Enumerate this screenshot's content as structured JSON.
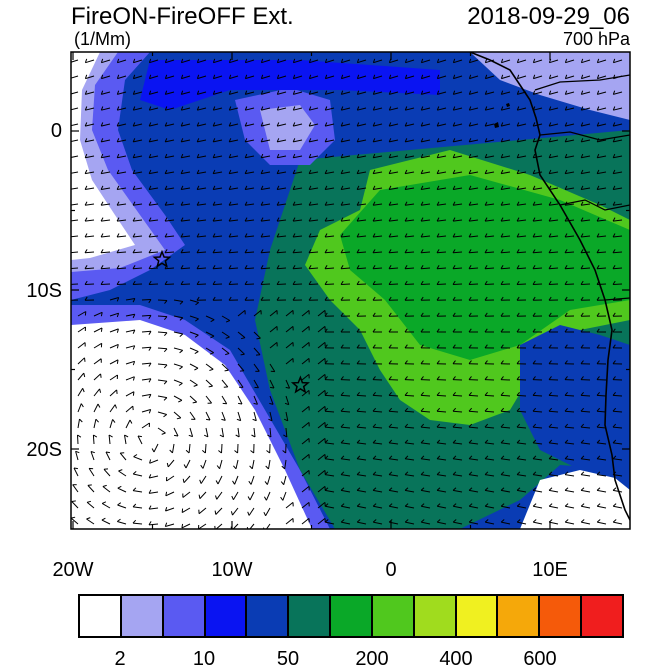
{
  "map": {
    "title": "FireON-FireOFF Ext.",
    "time": "2018-09-29_06",
    "units": "(1/Mm)",
    "level": "700 hPa",
    "lat_labels": [
      "0",
      "10S",
      "20S"
    ],
    "lon_labels": [
      "20W",
      "10W",
      "0",
      "10E"
    ],
    "markers": [
      {
        "name": "star-marker-1",
        "lon": -14.4,
        "lat": -8.1
      },
      {
        "name": "star-marker-2",
        "lon": -5.7,
        "lat": -16.0
      }
    ]
  },
  "colorbar": {
    "colors": [
      "#ffffff",
      "#a5a5f2",
      "#5a5af2",
      "#0a14f2",
      "#0a3cb4",
      "#08745a",
      "#0aa828",
      "#50c81e",
      "#a0dc1e",
      "#f0f020",
      "#f5a80a",
      "#f55a0a",
      "#f01e1e"
    ],
    "labels": [
      "2",
      "10",
      "50",
      "200",
      "400",
      "600"
    ]
  }
}
